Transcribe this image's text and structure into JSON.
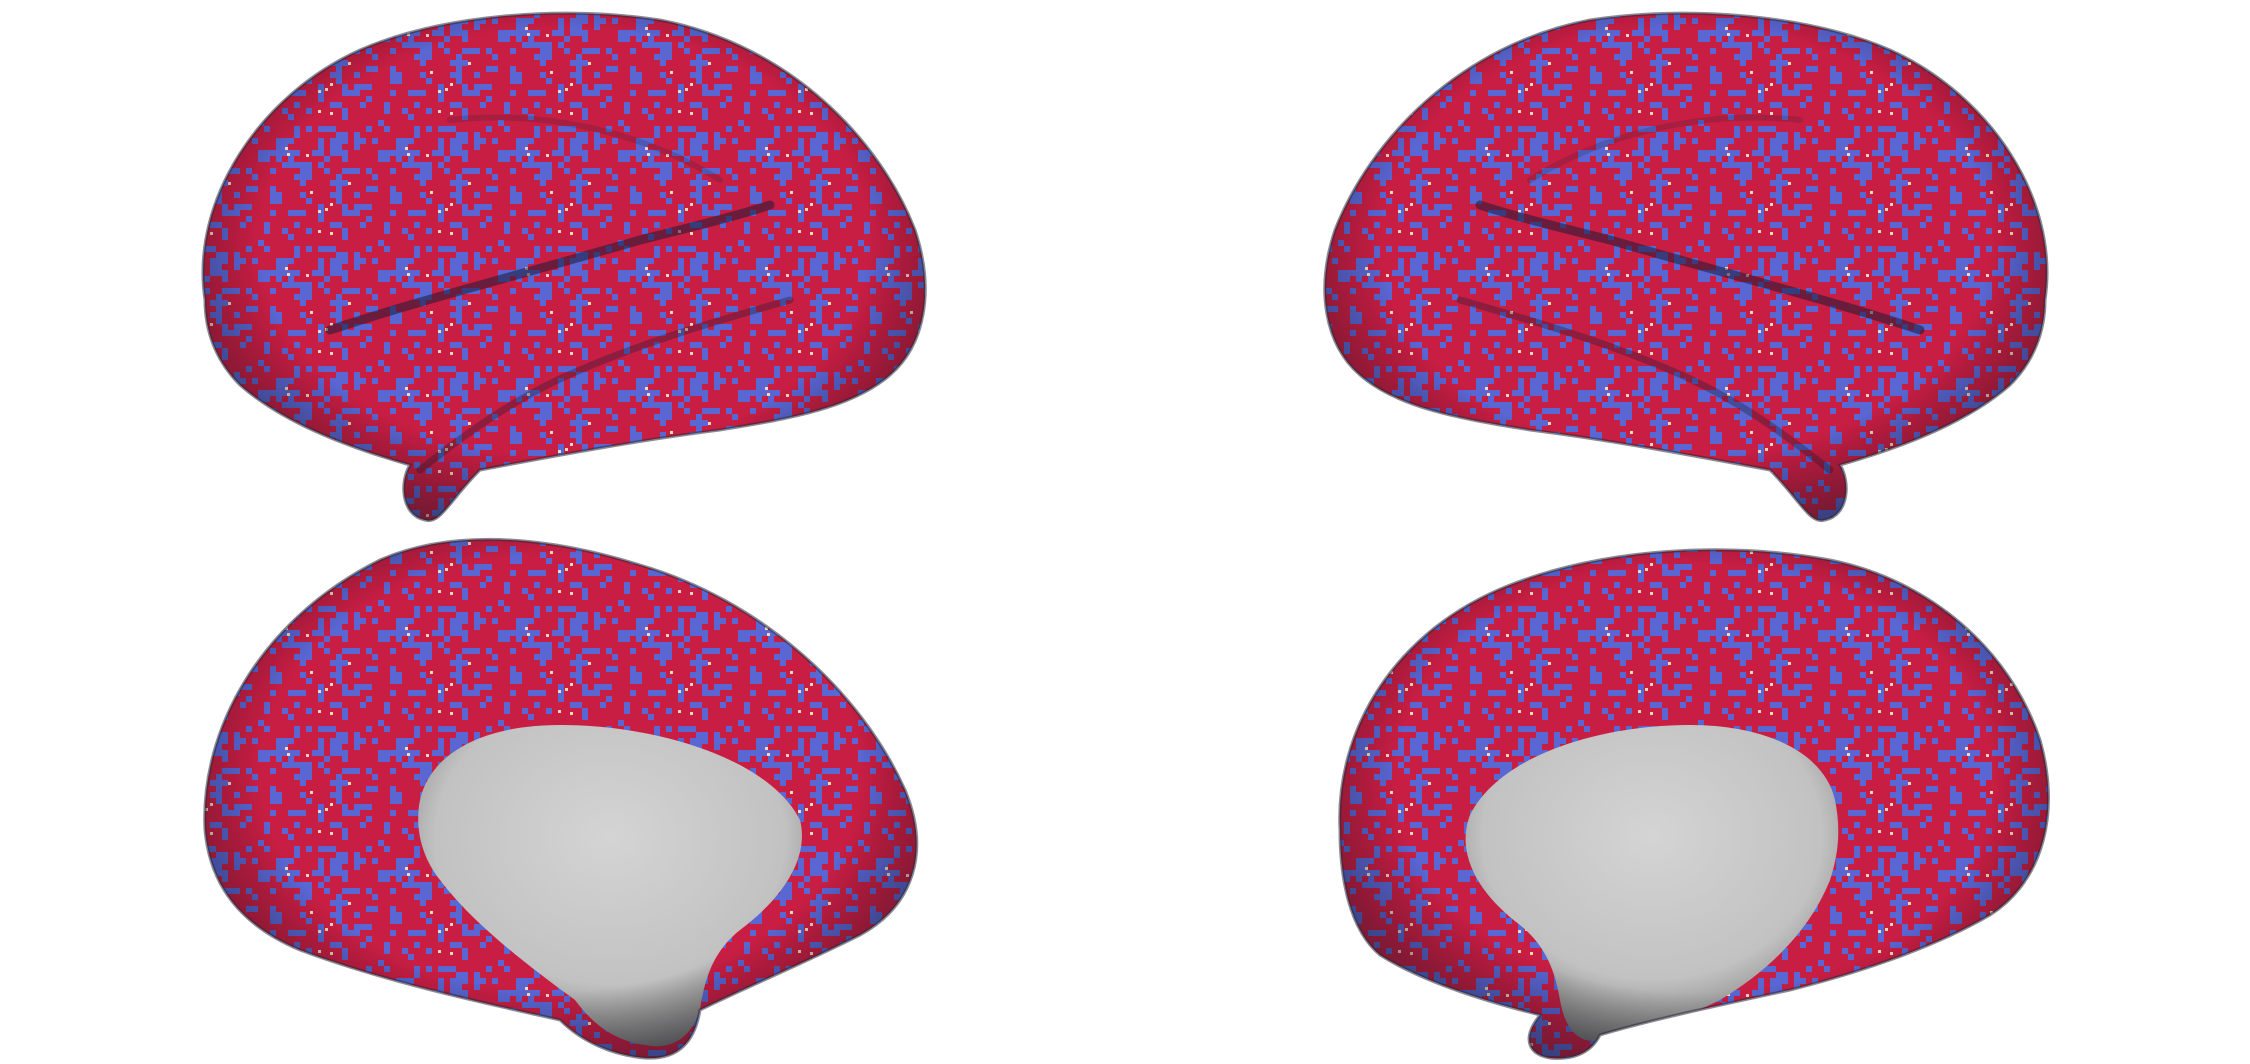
{
  "figure": {
    "description_free": true,
    "colors": {
      "background": "#ffffff",
      "positive": "#c81e44",
      "negative": "#5a66d2",
      "speckle": "#f2d9b8",
      "medial_wall": "#c9c9c9",
      "edge_shadow": "#2a2a3a"
    },
    "panels": [
      {
        "name": "left-hemisphere-lateral"
      },
      {
        "name": "right-hemisphere-lateral"
      },
      {
        "name": "left-hemisphere-medial"
      },
      {
        "name": "right-hemisphere-medial"
      }
    ]
  }
}
